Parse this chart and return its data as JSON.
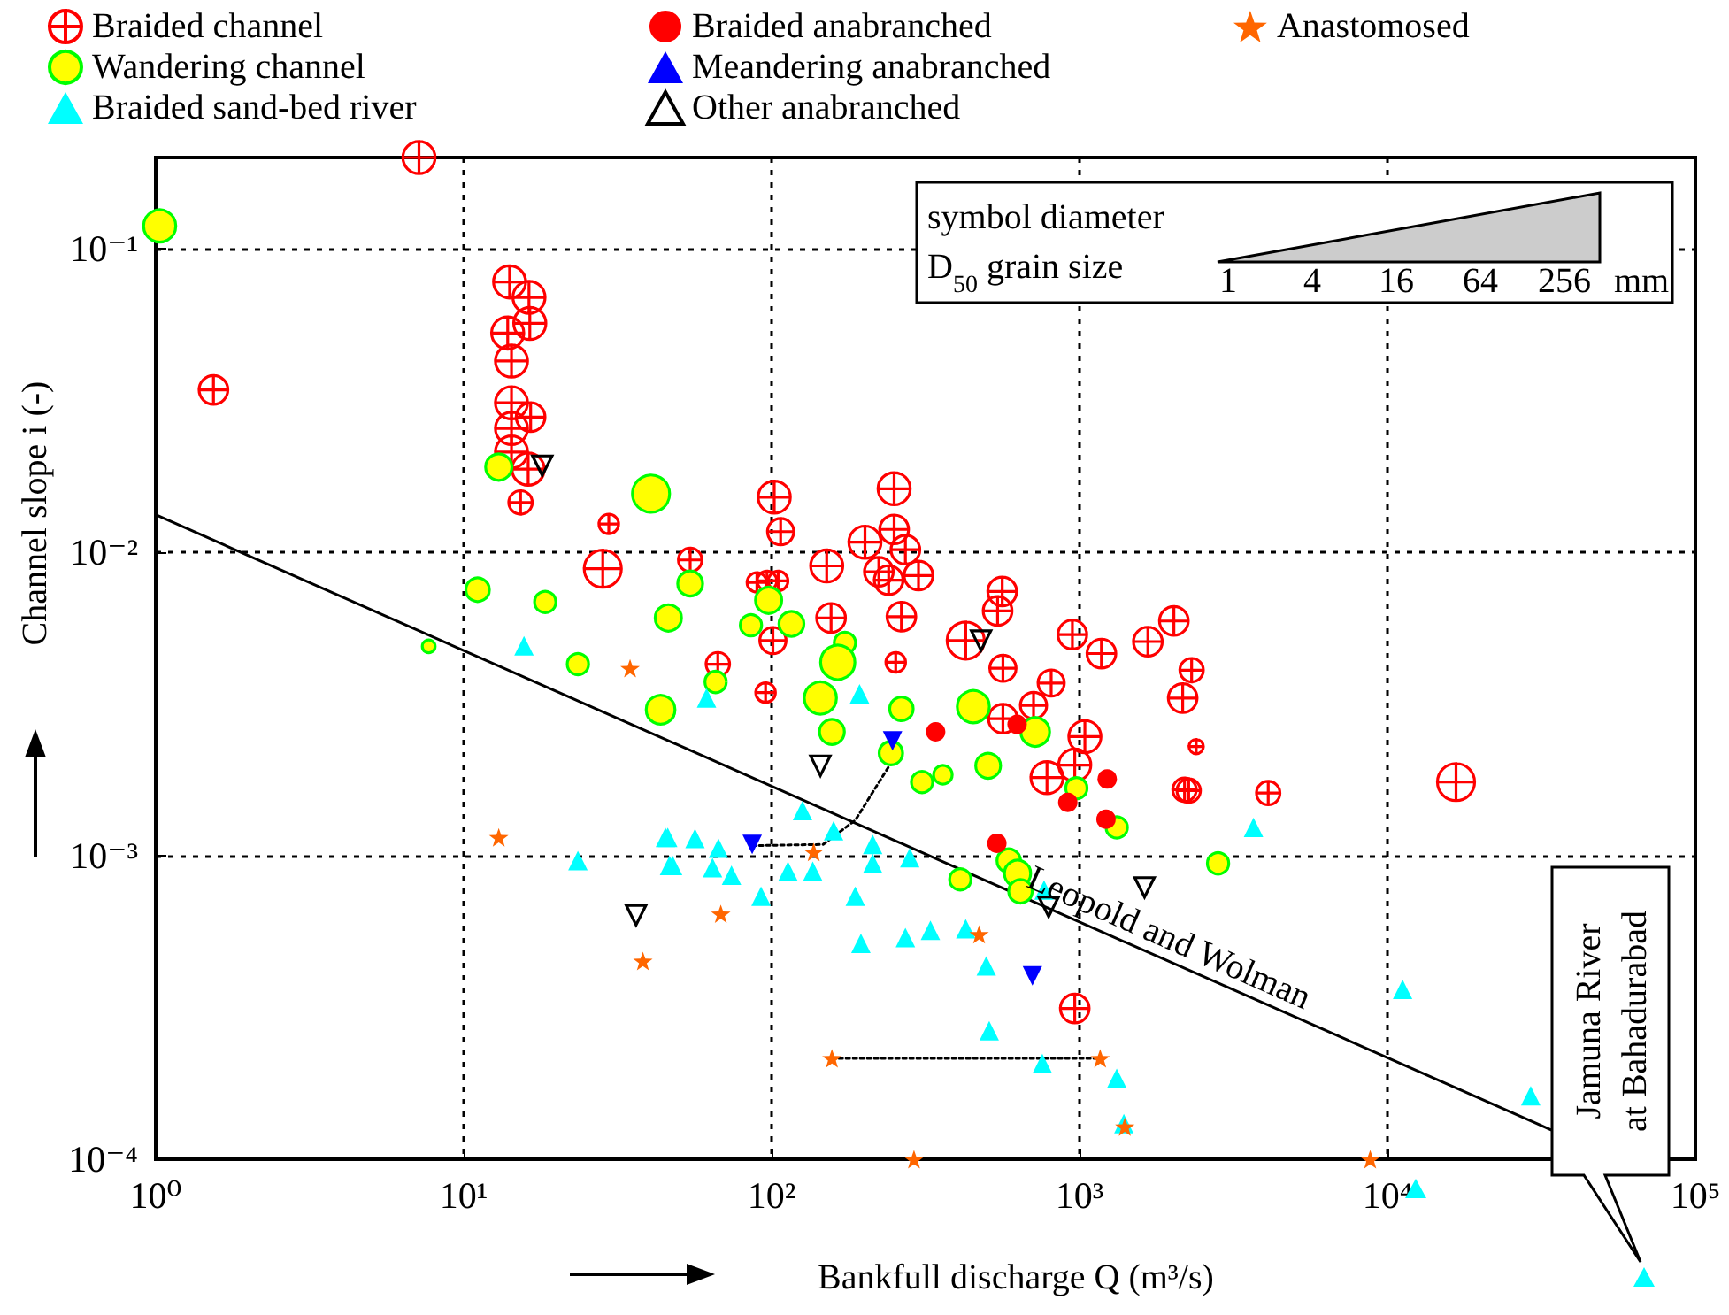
{
  "chart_data": {
    "type": "scatter",
    "xlabel": "Bankfull discharge Q (m³/s)",
    "ylabel": "Channel slope i (-)",
    "log": "xy",
    "grid": true,
    "legend": "top",
    "xlim": [
      1,
      100000
    ],
    "xticks": [
      {
        "value": 1,
        "label": "10⁰"
      },
      {
        "value": 10,
        "label": "10¹"
      },
      {
        "value": 100,
        "label": "10²"
      },
      {
        "value": 1000,
        "label": "10³"
      },
      {
        "value": 10000,
        "label": "10⁴"
      },
      {
        "value": 100000,
        "label": "10⁵"
      }
    ],
    "ylim": [
      0.0001,
      0.2
    ],
    "yticks": [
      {
        "value": 0.0001,
        "label": "10⁻⁴"
      },
      {
        "value": 0.001,
        "label": "10⁻³"
      },
      {
        "value": 0.01,
        "label": "10⁻²"
      },
      {
        "value": 0.1,
        "label": "10⁻¹"
      }
    ],
    "series": [
      {
        "name": "Braided channel",
        "type": "bubble",
        "marker": "cross",
        "color": "#ff0000",
        "x": [
          7.16,
          1.54,
          14.1,
          16.3,
          16.4,
          13.9,
          14.3,
          14.3,
          16.5,
          14.3,
          14.3,
          16.2,
          15.3,
          29.6,
          28.3,
          102,
          107,
          250,
          250,
          272,
          201,
          151,
          223,
          240,
          300,
          54.4,
          89.6,
          96.6,
          105,
          156,
          264,
          101,
          561,
          542,
          427,
          948,
          1178,
          1667,
          2025,
          66.9,
          253,
          95.6,
          564,
          809,
          709,
          564,
          1041,
          965,
          784,
          2193,
          965,
          2312,
          2163,
          2393,
          2262,
          4100,
          16700
        ],
        "values": [
          0.2,
          0.0343,
          0.0778,
          0.0692,
          0.0568,
          0.0528,
          0.0427,
          0.0311,
          0.0279,
          0.0256,
          0.0214,
          0.0188,
          0.0146,
          0.0124,
          0.00883,
          0.0152,
          0.0117,
          0.0162,
          0.0119,
          0.0102,
          0.0108,
          0.00902,
          0.00863,
          0.0081,
          0.00839,
          0.00944,
          0.00796,
          0.00805,
          0.00805,
          0.00608,
          0.00614,
          0.00512,
          0.00743,
          0.00641,
          0.00512,
          0.00536,
          0.00464,
          0.00508,
          0.00594,
          0.00428,
          0.00434,
          0.00345,
          0.00415,
          0.00371,
          0.00313,
          0.00283,
          0.00247,
          0.00199,
          0.00181,
          0.00165,
          0.000314,
          0.00409,
          0.00331,
          0.00229,
          0.00164,
          0.00161,
          0.00175
        ],
        "sizes": [
          0.75,
          0.6,
          0.75,
          0.75,
          0.75,
          0.75,
          0.75,
          0.75,
          0.6,
          0.75,
          0.75,
          0.75,
          0.4,
          0.28,
          1,
          0.75,
          0.5,
          0.75,
          0.6,
          0.6,
          0.75,
          0.75,
          0.6,
          0.6,
          0.6,
          0.4,
          0.28,
          0.28,
          0.28,
          0.6,
          0.6,
          0.5,
          0.6,
          0.6,
          1,
          0.6,
          0.6,
          0.6,
          0.6,
          0.4,
          0.28,
          0.28,
          0.5,
          0.5,
          0.5,
          0.6,
          0.75,
          0.75,
          0.75,
          0.4,
          0.6,
          0.4,
          0.6,
          0.15,
          0.4,
          0.4,
          1
        ]
      },
      {
        "name": "Wandering channel",
        "type": "bubble",
        "marker": "circle",
        "color": "#ffff00",
        "x": [
          1.03,
          13.0,
          40.6,
          11.1,
          18.4,
          7.7,
          46.2,
          23.5,
          54.4,
          97.8,
          85.7,
          116,
          173,
          164,
          43.6,
          65.8,
          144,
          157,
          264,
          244,
          308,
          360,
          452,
          505,
          718,
          977,
          1321,
          410,
          589,
          629,
          643,
          2818
        ],
        "values": [
          0.119,
          0.0191,
          0.0156,
          0.00753,
          0.00686,
          0.0049,
          0.00608,
          0.00428,
          0.00789,
          0.00695,
          0.00575,
          0.00581,
          0.00503,
          0.00434,
          0.00303,
          0.00374,
          0.00331,
          0.00256,
          0.00305,
          0.00218,
          0.00175,
          0.00185,
          0.0031,
          0.00198,
          0.00256,
          0.00167,
          0.00124,
          0.000836,
          0.000964,
          0.000875,
          0.000764,
          0.000944
        ],
        "sizes": [
          0.75,
          0.5,
          1,
          0.4,
          0.33,
          0.12,
          0.5,
          0.33,
          0.45,
          0.5,
          0.33,
          0.45,
          0.33,
          0.85,
          0.6,
          0.33,
          0.75,
          0.45,
          0.4,
          0.4,
          0.33,
          0.25,
          0.75,
          0.45,
          0.6,
          0.33,
          0.33,
          0.33,
          0.4,
          0.5,
          0.4,
          0.33
        ]
      },
      {
        "name": "Braided sand-bed river",
        "marker": "triangle",
        "color": "#00ffff",
        "x": [
          15.7,
          23.5,
          45.2,
          46.6,
          61.5,
          193,
          126,
          46.0,
          56.4,
          67.2,
          159,
          213,
          281,
          47.7,
          64.3,
          74.1,
          113,
          136,
          213,
          92.4,
          187,
          195,
          272,
          328,
          427,
          498,
          509,
          757,
          1321,
          767,
          1393,
          3673,
          11200,
          29200
        ],
        "values": [
          0.00492,
          0.000964,
          0.00115,
          0.000929,
          0.00331,
          0.00342,
          0.00141,
          0.00115,
          0.00114,
          0.00106,
          0.00121,
          0.00109,
          0.000986,
          0.000929,
          0.000914,
          0.000863,
          0.000889,
          0.000889,
          0.000944,
          0.000736,
          0.000736,
          0.000515,
          0.000538,
          0.000568,
          0.000575,
          0.000434,
          0.000265,
          0.000207,
          0.000185,
          0.000771,
          0.000131,
          0.00124,
          0.000363,
          0.000162
        ]
      },
      {
        "name": "Braided anabranched",
        "marker": "circle",
        "color": "#ff0000",
        "x": [
          341,
          627,
          1230,
          916,
          1219,
          539
        ],
        "values": [
          0.00256,
          0.00271,
          0.00179,
          0.0015,
          0.00132,
          0.0011
        ]
      },
      {
        "name": "Meandering anabranched",
        "marker": "triangle-down",
        "color": "#0000ff",
        "x": [
          247,
          86.5,
          703
        ],
        "values": [
          0.00239,
          0.00109,
          0.000402
        ]
      },
      {
        "name": "Other anabranched",
        "marker": "triangle-down-open",
        "color": "#000000",
        "x": [
          18.0,
          479,
          144,
          794,
          1626,
          36.3
        ],
        "values": [
          0.0193,
          0.00512,
          0.00198,
          0.000679,
          0.000787,
          0.000637
        ]
      },
      {
        "name": "Anastomosed",
        "marker": "star",
        "color": "#ff6600",
        "x": [
          34.7,
          13.0,
          38.2,
          137,
          68.4,
          472,
          157,
          1167,
          1403,
          290,
          8790
        ],
        "values": [
          0.00415,
          0.00115,
          0.00045,
          0.00103,
          0.000644,
          0.000551,
          0.000215,
          0.000215,
          0.000128,
          0.0001,
          0.0001
        ]
      },
      {
        "type": "line",
        "marker": "none",
        "line_style": "solid",
        "color": "#000000",
        "x": [
          1,
          34000
        ],
        "values": [
          0.0133,
          0.000125
        ]
      },
      {
        "type": "line",
        "marker": "none",
        "line_style": "dotted",
        "color": "#000000",
        "x": [
          157,
          1167
        ],
        "values": [
          0.000215,
          0.000215
        ]
      },
      {
        "type": "line",
        "marker": "none",
        "line_style": "dotted",
        "color": "#000000",
        "x": [
          86.5,
          147,
          187,
          241
        ],
        "values": [
          0.00108,
          0.00109,
          0.00131,
          0.00198
        ]
      }
    ],
    "annotations": [
      "symbol diameter",
      "D$_{50}$ grain size",
      "1",
      "4",
      "16",
      "64",
      "256",
      "mm",
      "Leopold and Wolman",
      "Jamuna River at Bahadurabad"
    ]
  }
}
